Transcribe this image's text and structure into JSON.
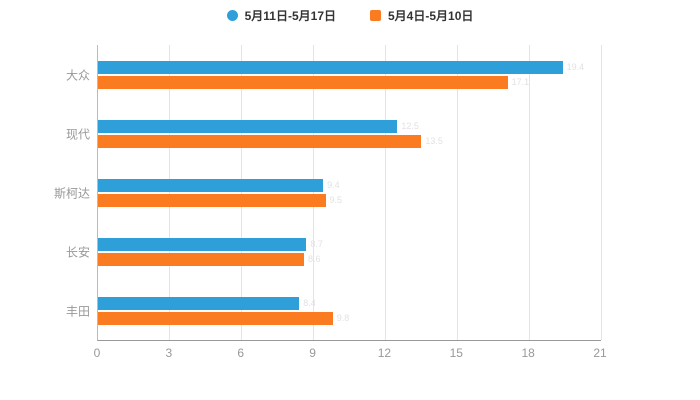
{
  "legend": {
    "items": [
      {
        "label": "5月11日-5月17日",
        "color": "#2f9fd9",
        "shape": "circle"
      },
      {
        "label": "5月4日-5月10日",
        "color": "#fb7b21",
        "shape": "square"
      }
    ]
  },
  "chart_data": {
    "type": "bar",
    "orientation": "horizontal",
    "title": "",
    "xlabel": "",
    "ylabel": "",
    "categories": [
      "大众",
      "现代",
      "斯柯达",
      "长安",
      "丰田"
    ],
    "series": [
      {
        "name": "5月11日-5月17日",
        "color": "#2f9fd9",
        "values": [
          19.4,
          12.5,
          9.4,
          8.7,
          8.4
        ]
      },
      {
        "name": "5月4日-5月10日",
        "color": "#fb7b21",
        "values": [
          17.1,
          13.5,
          9.5,
          8.6,
          9.8
        ]
      }
    ],
    "xlim": [
      0,
      21
    ],
    "xticks": [
      0,
      3,
      6,
      9,
      12,
      15,
      18,
      21
    ],
    "grid": true,
    "legend_position": "top",
    "colors": {
      "series1": "#2f9fd9",
      "series2": "#fb7b21",
      "axis": "#999999",
      "grid": "#e4e4e4",
      "tick_text": "#999999"
    }
  }
}
